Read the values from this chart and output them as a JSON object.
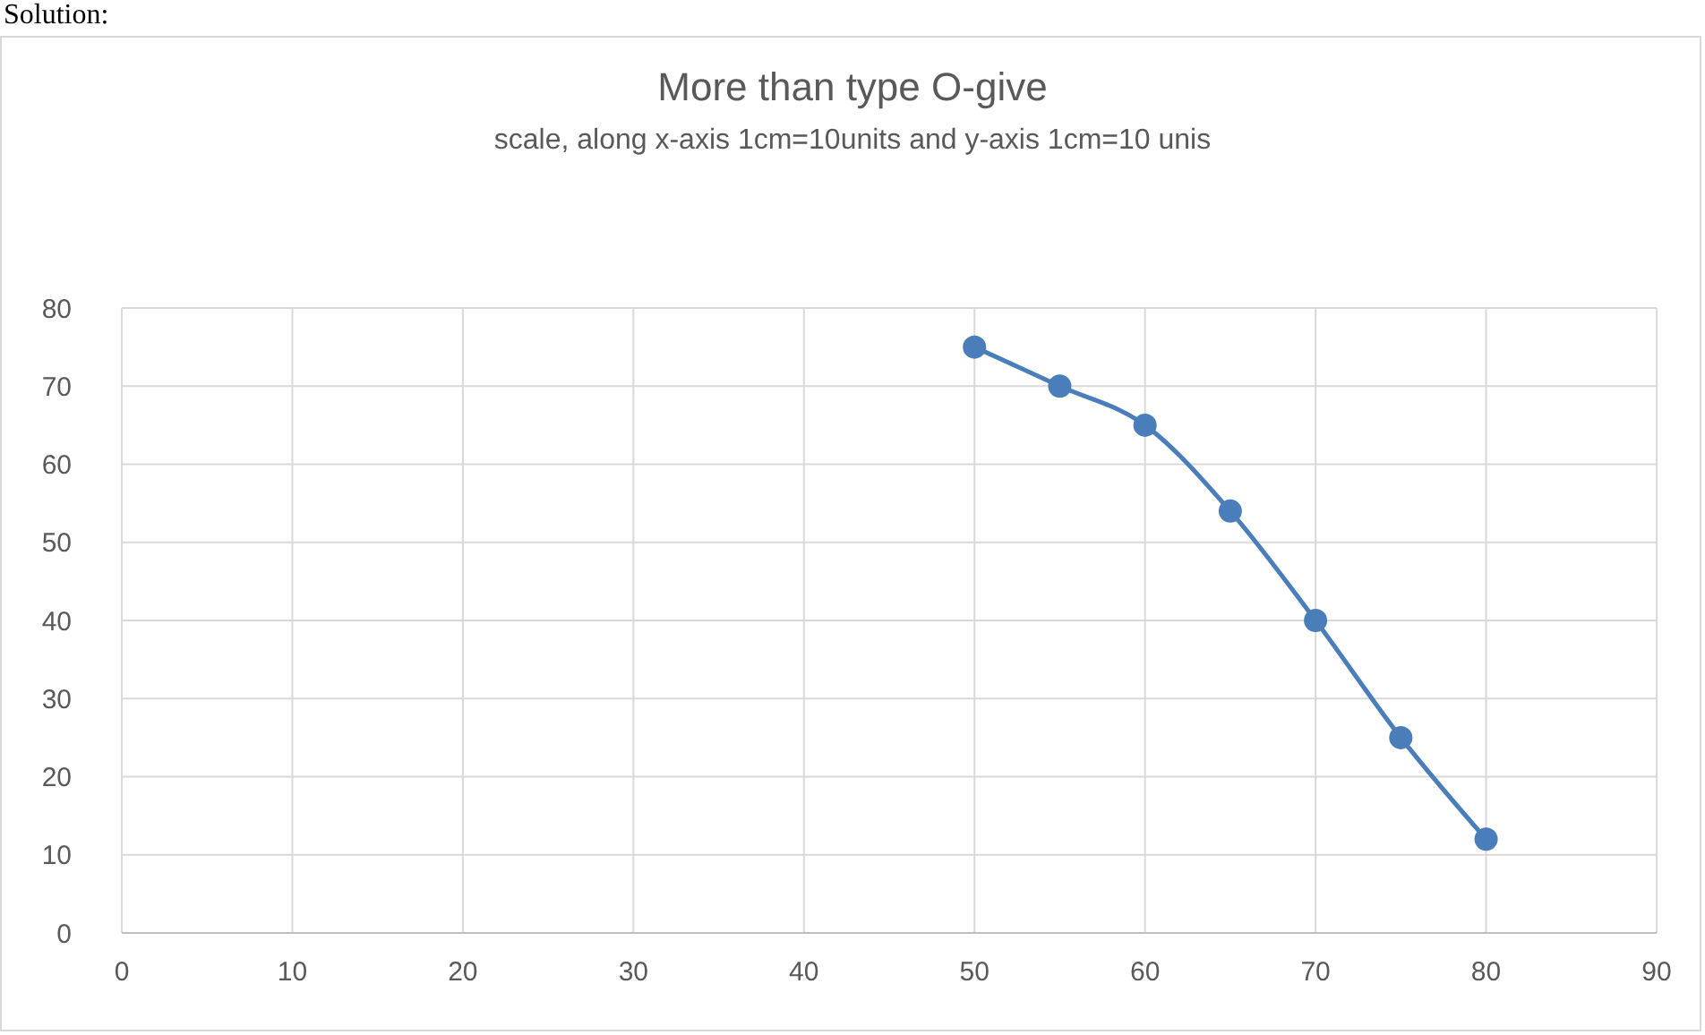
{
  "chart_data": {
    "type": "line",
    "title": "More than type O-give",
    "subtitle": "scale, along x-axis 1cm=10units and y-axis 1cm=10 unis",
    "annotations": [
      "Solution:"
    ],
    "x": [
      50,
      55,
      60,
      65,
      70,
      75,
      80
    ],
    "series": [
      {
        "color": "#4a7ebb",
        "values": [
          75,
          70,
          65,
          54,
          40,
          25,
          12
        ]
      }
    ],
    "xlim": [
      0,
      90
    ],
    "xticks": [
      0,
      10,
      20,
      30,
      40,
      50,
      60,
      70,
      80,
      90
    ],
    "ylim": [
      0,
      80
    ],
    "yticks": [
      0,
      10,
      20,
      30,
      40,
      50,
      60,
      70,
      80
    ],
    "grid": true,
    "marker": "circle",
    "line_style": "solid"
  }
}
